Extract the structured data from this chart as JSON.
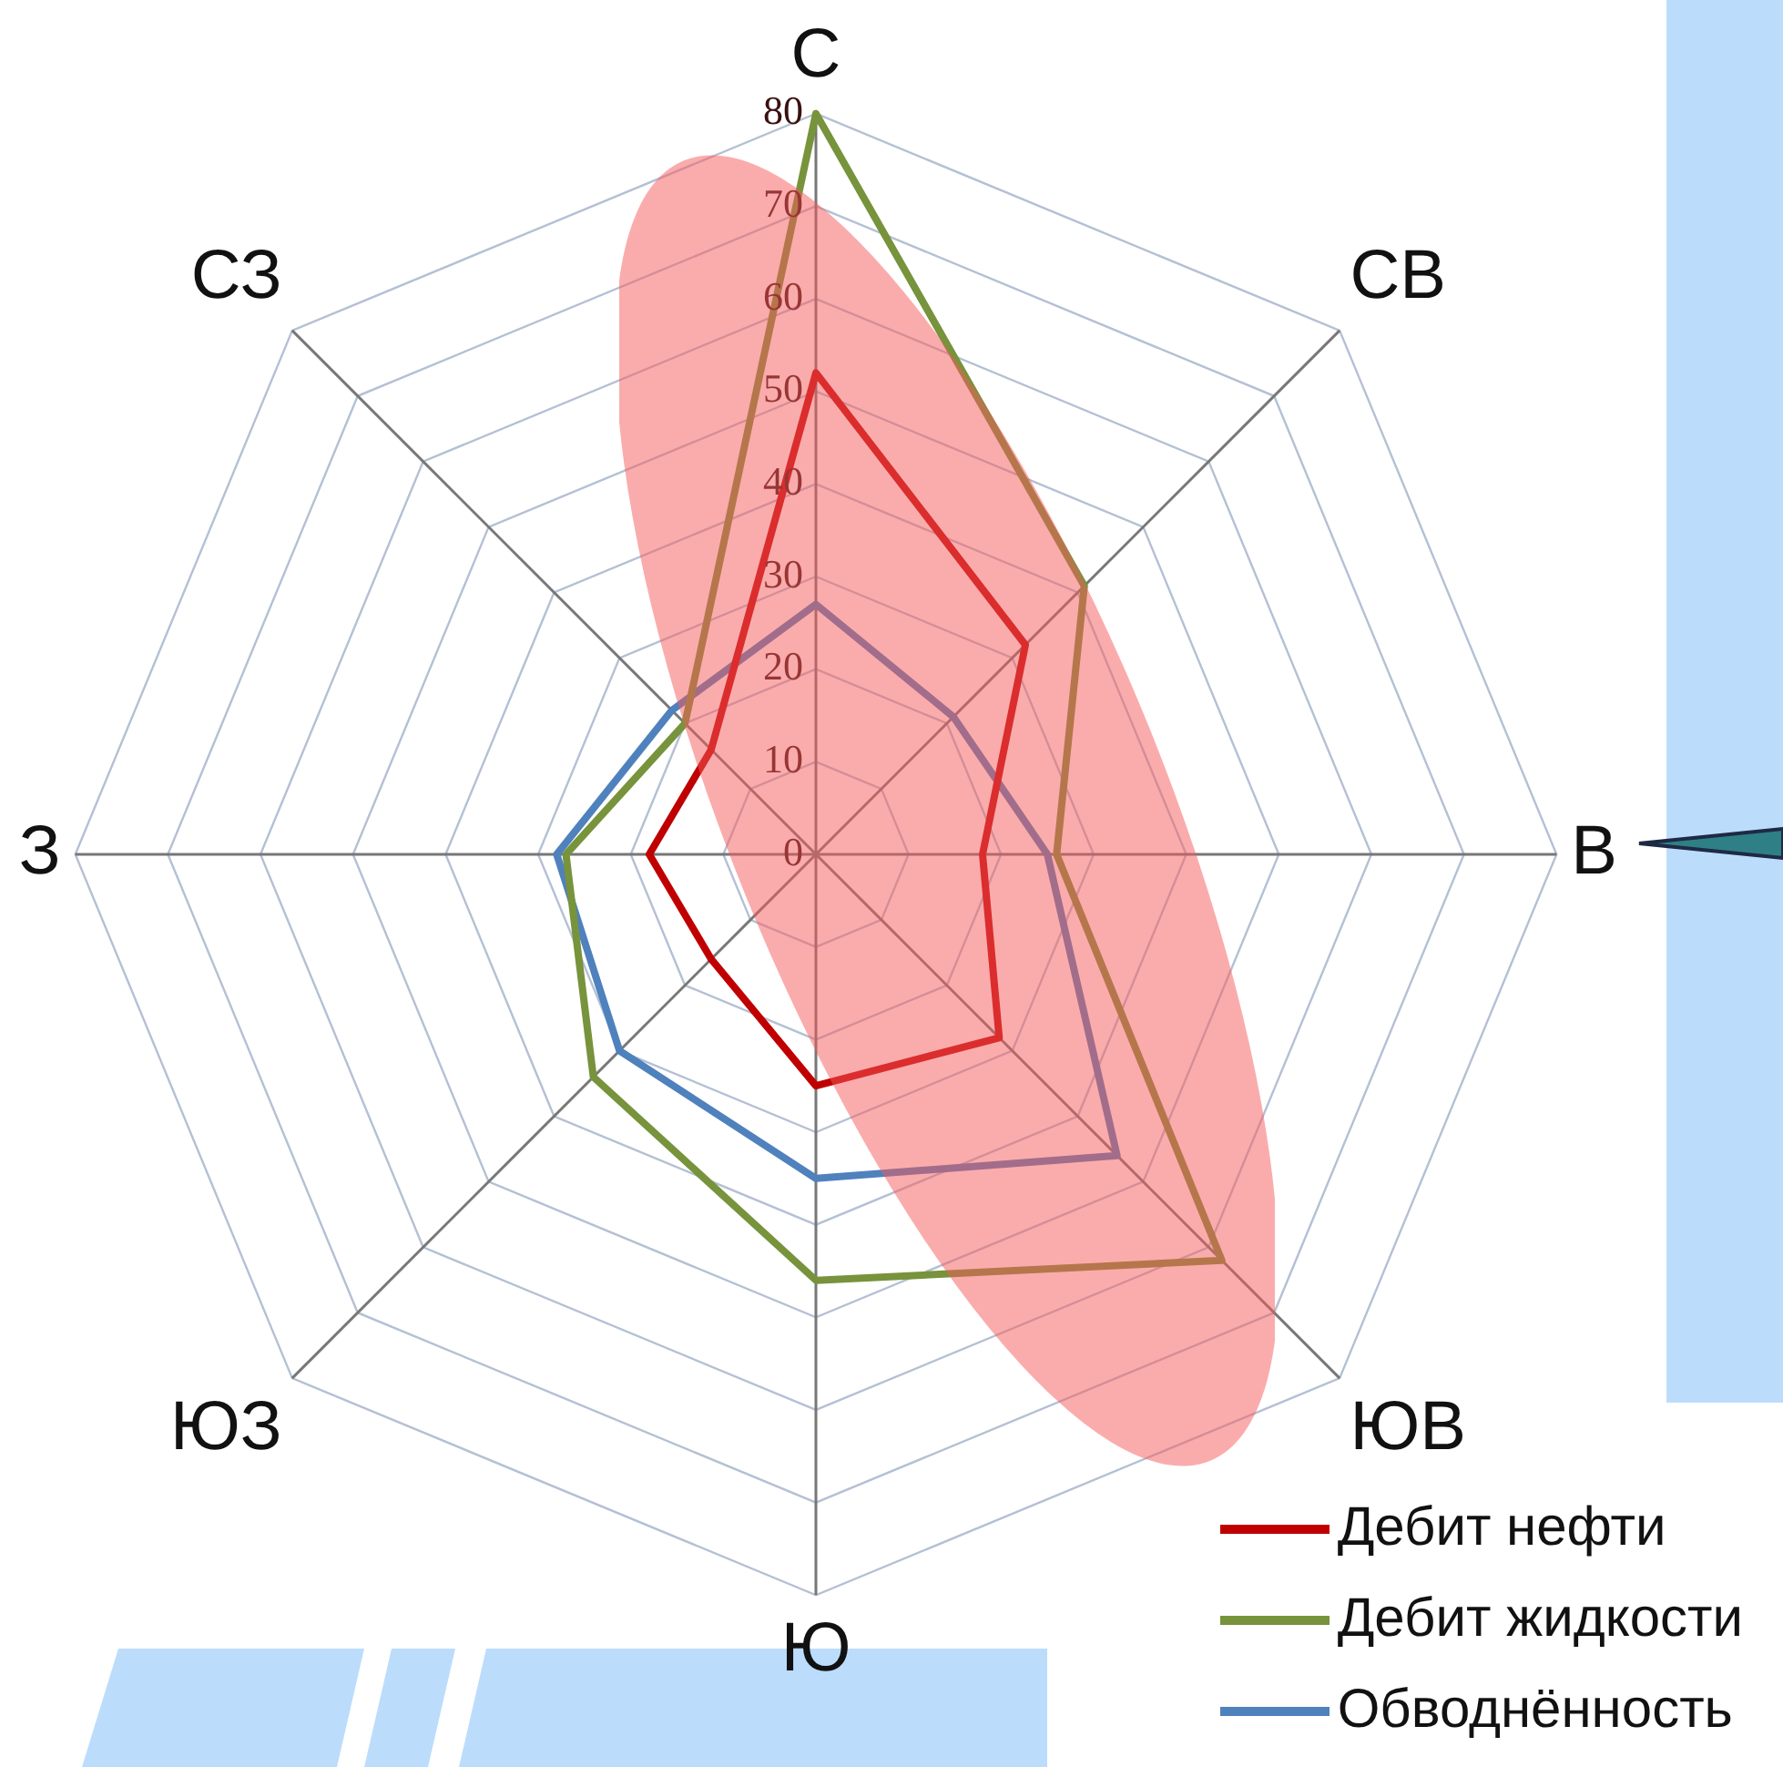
{
  "chart_data": {
    "type": "radar",
    "categories": [
      "С",
      "СВ",
      "В",
      "ЮВ",
      "Ю",
      "ЮЗ",
      "З",
      "СЗ"
    ],
    "series": [
      {
        "name": "Дебит нефти",
        "color": "#c00000",
        "values": [
          52,
          32,
          18,
          28,
          25,
          16,
          18,
          16
        ]
      },
      {
        "name": "Дебит жидкости",
        "color": "#77933c",
        "values": [
          80,
          41,
          26,
          62,
          46,
          34,
          27,
          20
        ]
      },
      {
        "name": "Обводнённость",
        "color": "#4f81bd",
        "values": [
          27,
          21,
          25,
          46,
          35,
          30,
          28,
          22
        ]
      }
    ],
    "ylim": [
      0,
      80
    ],
    "yticks": [
      0,
      10,
      20,
      30,
      40,
      50,
      60,
      70,
      80
    ],
    "grid": true,
    "legend": "bottom right",
    "marker": "none",
    "line_style": "solid"
  }
}
